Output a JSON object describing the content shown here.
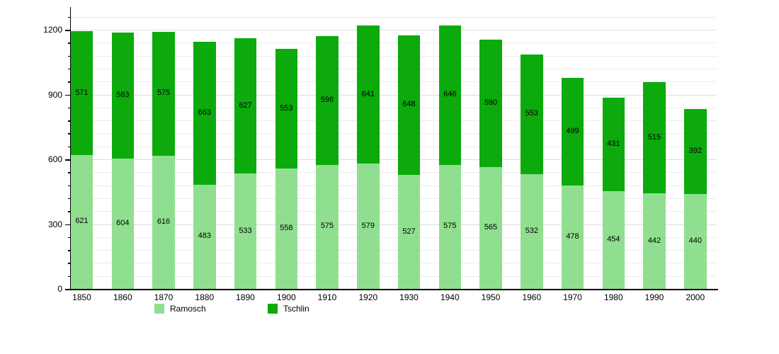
{
  "chart_data": {
    "type": "bar",
    "stacked": true,
    "title": "",
    "xlabel": "",
    "ylabel": "",
    "categories": [
      "1850",
      "1860",
      "1870",
      "1880",
      "1890",
      "1900",
      "1910",
      "1920",
      "1930",
      "1940",
      "1950",
      "1960",
      "1970",
      "1980",
      "1990",
      "2000"
    ],
    "series": [
      {
        "name": "Ramosch",
        "color": "#90df90",
        "values": [
          621,
          604,
          616,
          483,
          533,
          558,
          575,
          579,
          527,
          575,
          565,
          532,
          478,
          454,
          442,
          440
        ]
      },
      {
        "name": "Tschlin",
        "color": "#0caa0c",
        "values": [
          571,
          583,
          575,
          663,
          627,
          553,
          596,
          641,
          648,
          646,
          590,
          553,
          499,
          431,
          515,
          392
        ]
      }
    ],
    "value_labels": true,
    "grid": true,
    "ylim": [
      0,
      1300
    ],
    "y_major_ticks": [
      0,
      300,
      600,
      900,
      1200
    ],
    "y_minor_step": 60,
    "legend_position": "bottom"
  },
  "legend": {
    "items": [
      {
        "label": "Ramosch"
      },
      {
        "label": "Tschlin"
      }
    ]
  }
}
